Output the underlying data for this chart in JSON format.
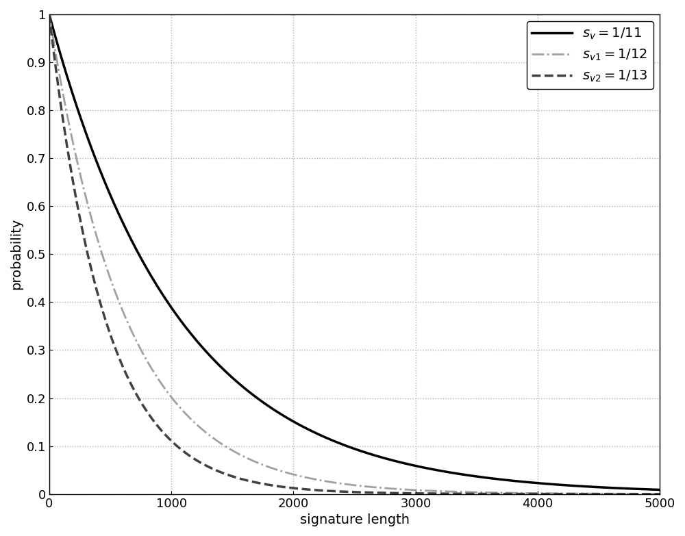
{
  "title": "",
  "xlabel": "signature length",
  "ylabel": "probability",
  "xlim": [
    0,
    5000
  ],
  "ylim": [
    0,
    1
  ],
  "xticks": [
    0,
    1000,
    2000,
    3000,
    4000,
    5000
  ],
  "yticks": [
    0,
    0.1,
    0.2,
    0.3,
    0.4,
    0.5,
    0.6,
    0.7,
    0.8,
    0.9,
    1
  ],
  "series": [
    {
      "label": "$s_{v}=1/11$",
      "decay_rate": 0.000945,
      "color": "#000000",
      "linestyle": "solid",
      "linewidth": 2.5
    },
    {
      "label": "$s_{v1}=1/12$",
      "decay_rate": 0.0016,
      "color": "#a0a0a0",
      "linestyle": "dashdot",
      "linewidth": 2.0
    },
    {
      "label": "$s_{v2}=1/13$",
      "decay_rate": 0.0022,
      "color": "#404040",
      "linestyle": "dashed",
      "linewidth": 2.5
    }
  ],
  "grid_color": "#b0b0b0",
  "grid_linestyle": "dotted",
  "background_color": "#ffffff",
  "legend_loc": "upper right",
  "legend_fontsize": 14,
  "axis_fontsize": 14,
  "tick_fontsize": 13
}
